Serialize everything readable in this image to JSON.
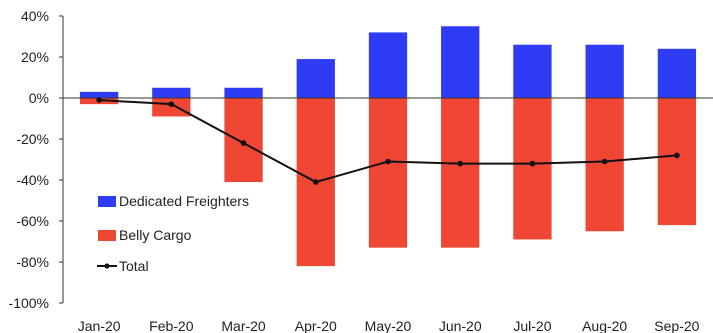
{
  "chart_data": {
    "type": "bar",
    "categories": [
      "Jan-20",
      "Feb-20",
      "Mar-20",
      "Apr-20",
      "May-20",
      "Jun-20",
      "Jul-20",
      "Aug-20",
      "Sep-20"
    ],
    "series": [
      {
        "name": "Dedicated Freighters",
        "type": "bar",
        "color": "#2f3cf5",
        "values": [
          3,
          5,
          5,
          19,
          32,
          35,
          26,
          26,
          24
        ]
      },
      {
        "name": "Belly Cargo",
        "type": "bar",
        "color": "#f04634",
        "values": [
          -3,
          -9,
          -41,
          -82,
          -73,
          -73,
          -69,
          -65,
          -62
        ]
      },
      {
        "name": "Total",
        "type": "line",
        "color": "#111111",
        "values": [
          -1,
          -3,
          -22,
          -41,
          -31,
          -32,
          -32,
          -31,
          -28
        ]
      }
    ],
    "y_ticks": [
      "40%",
      "20%",
      "0%",
      "-20%",
      "-40%",
      "-60%",
      "-80%",
      "-100%"
    ],
    "ylim": [
      -100,
      40
    ],
    "y_unit": "%",
    "grid": false,
    "legend_position": "center-left"
  }
}
